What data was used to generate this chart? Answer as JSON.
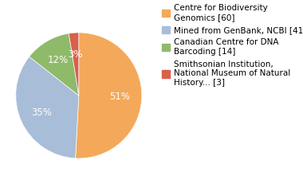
{
  "labels": [
    "Centre for Biodiversity\nGenomics [60]",
    "Mined from GenBank, NCBI [41]",
    "Canadian Centre for DNA\nBarcoding [14]",
    "Smithsonian Institution,\nNational Museum of Natural\nHistory... [3]"
  ],
  "values": [
    60,
    41,
    14,
    3
  ],
  "colors": [
    "#F4A85A",
    "#A8BDD8",
    "#8FBA6A",
    "#D9604A"
  ],
  "text_color": "white",
  "background_color": "#ffffff",
  "legend_fontsize": 7.5,
  "autopct_fontsize": 8.5
}
